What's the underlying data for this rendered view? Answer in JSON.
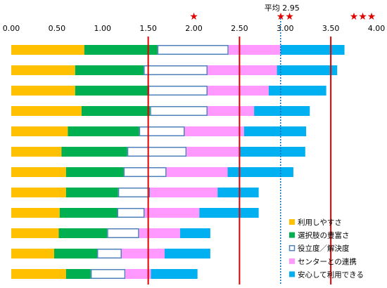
{
  "chart_data": {
    "type": "bar",
    "orientation": "horizontal-stacked",
    "xlim": [
      0,
      4
    ],
    "x_ticks": [
      "0.00",
      "0.50",
      "1.00",
      "1.50",
      "2.00",
      "2.50",
      "3.00",
      "3.50",
      "4.00"
    ],
    "reference_lines": [
      1.5,
      2.5,
      3.5
    ],
    "average": {
      "label": "平均 2.95",
      "value": 2.95
    },
    "star_marks": [
      {
        "text": "★",
        "x": 2.0
      },
      {
        "text": "★★",
        "x": 3.0
      },
      {
        "text": "★★★",
        "x": 3.85
      }
    ],
    "legend_position": "bottom-right",
    "series": [
      {
        "name": "利用しやすさ",
        "color": "#FFC000",
        "values": [
          0.8,
          0.7,
          0.7,
          0.77,
          0.62,
          0.55,
          0.6,
          0.6,
          0.53,
          0.52,
          0.47,
          0.6
        ]
      },
      {
        "name": "選択肢の豊富さ",
        "color": "#00B050",
        "values": [
          0.8,
          0.75,
          0.8,
          0.75,
          0.78,
          0.72,
          0.63,
          0.57,
          0.63,
          0.53,
          0.47,
          0.27
        ]
      },
      {
        "name": "役立度／解決度",
        "color": "#FFFFFF",
        "outline": "#4F81BD",
        "values": [
          0.78,
          0.7,
          0.65,
          0.63,
          0.5,
          0.65,
          0.47,
          0.35,
          0.3,
          0.35,
          0.27,
          0.38
        ]
      },
      {
        "name": "センターとの連携",
        "color": "#FF99FF",
        "values": [
          0.57,
          0.76,
          0.67,
          0.51,
          0.65,
          0.58,
          0.67,
          0.74,
          0.6,
          0.45,
          0.47,
          0.28
        ]
      },
      {
        "name": "安心して利用できる",
        "color": "#00B0F0",
        "values": [
          0.7,
          0.66,
          0.63,
          0.61,
          0.68,
          0.72,
          0.72,
          0.45,
          0.65,
          0.33,
          0.5,
          0.51
        ]
      }
    ]
  }
}
